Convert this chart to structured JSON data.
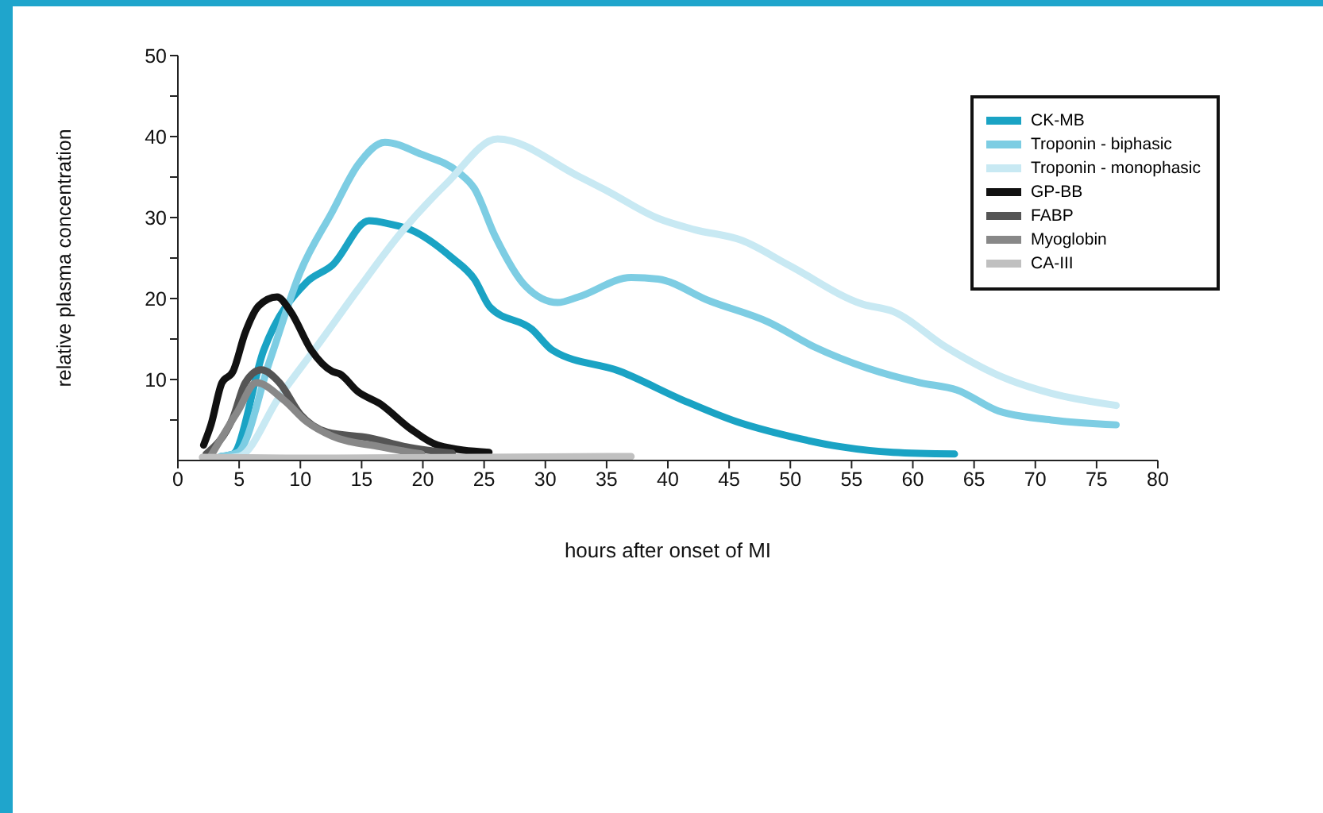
{
  "chart_data": {
    "type": "line",
    "xlabel": "hours after onset of MI",
    "ylabel": "relative plasma concentration",
    "xlim": [
      0,
      80
    ],
    "xticks": [
      0,
      5,
      10,
      15,
      20,
      25,
      30,
      35,
      40,
      45,
      50,
      55,
      60,
      65,
      70,
      75,
      80
    ],
    "ylim": [
      0,
      50
    ],
    "yticks": [
      {
        "value": 5,
        "label": null
      },
      10,
      {
        "value": 15,
        "label": null
      },
      20,
      {
        "value": 25,
        "label": null
      },
      30,
      {
        "value": 35,
        "label": null
      },
      40,
      {
        "value": 45,
        "label": null
      },
      50
    ],
    "grid": false,
    "legend": "top right",
    "marker": "none",
    "line_style": "solid",
    "series": [
      {
        "name": "CK-MB",
        "color": "#1aa3c4",
        "x": [
          3.5,
          4.5,
          7,
          10.5,
          12.6,
          15.6,
          17.3,
          19,
          22.4,
          24.2,
          25.5,
          28.9,
          30.6,
          36.1,
          41.3,
          45.6,
          49.9,
          54.1,
          58.4,
          63.4
        ],
        "values": [
          0.5,
          0.8,
          13.6,
          22,
          24.1,
          29.6,
          29.2,
          28.5,
          25,
          22.4,
          18.9,
          16.2,
          13.6,
          11,
          7.4,
          4.8,
          3,
          1.7,
          1,
          0.8
        ]
      },
      {
        "name": "Troponin - biphasic",
        "color": "#7dcde3",
        "x": [
          3.5,
          4.9,
          7.5,
          10,
          12.6,
          14.7,
          16.9,
          19.9,
          22.9,
          24.2,
          25.9,
          28.4,
          31,
          32.7,
          37,
          39.2,
          43.4,
          48.2,
          52,
          56.3,
          60.6,
          63.6,
          67,
          71.3,
          76.6
        ],
        "values": [
          0.5,
          1,
          12.3,
          23.3,
          30.7,
          36.5,
          39.3,
          37.8,
          35.6,
          33.6,
          27.7,
          21.5,
          19.5,
          20.2,
          22.6,
          22.4,
          19.7,
          17.1,
          14,
          11.4,
          9.6,
          8.7,
          6.1,
          5,
          4.4
        ]
      },
      {
        "name": "Troponin - monophasic",
        "color": "#c8e9f3",
        "x": [
          3.5,
          5,
          8.3,
          11.3,
          14.7,
          18.2,
          22,
          26.1,
          32.7,
          34.9,
          39.2,
          42.2,
          46,
          49.9,
          55.9,
          58.4,
          62.7,
          67,
          71.3,
          76.6
        ],
        "values": [
          0.3,
          0.5,
          7.9,
          14,
          21.1,
          28.1,
          34.3,
          39.7,
          35.1,
          33.4,
          29.9,
          28.5,
          27.2,
          24.1,
          19.3,
          18.4,
          14,
          10.5,
          8.3,
          6.8
        ]
      },
      {
        "name": "GP-BB",
        "color": "#111111",
        "x": [
          2.1,
          2.7,
          3.6,
          4.5,
          5.5,
          6.6,
          8.1,
          9.2,
          10.9,
          12.6,
          13.2,
          14.7,
          16.5,
          19,
          21.2,
          25.4
        ],
        "values": [
          1.9,
          4.4,
          9.6,
          11,
          15.8,
          19.1,
          20.2,
          18.4,
          13.6,
          11,
          10.7,
          8.5,
          7,
          3.9,
          1.9,
          1
        ]
      },
      {
        "name": "FABP",
        "color": "#555555",
        "x": [
          2.3,
          4.5,
          5.5,
          6.8,
          8.3,
          10,
          12.2,
          15.6,
          18.6,
          22.4
        ],
        "values": [
          0.8,
          5.3,
          9.6,
          11.2,
          9.6,
          5.7,
          3.5,
          2.8,
          1.7,
          0.9
        ]
      },
      {
        "name": "Myoglobin",
        "color": "#888888",
        "x": [
          2.7,
          4.9,
          6.4,
          8.7,
          10.5,
          12.6,
          16.5,
          19.9
        ],
        "values": [
          0.6,
          6.1,
          9.6,
          7.4,
          4.8,
          3,
          1.7,
          0.8
        ]
      },
      {
        "name": "CA-III",
        "color": "#c0c0c0",
        "x": [
          2,
          10,
          25,
          37
        ],
        "values": [
          0.4,
          0.3,
          0.4,
          0.5
        ]
      }
    ]
  }
}
